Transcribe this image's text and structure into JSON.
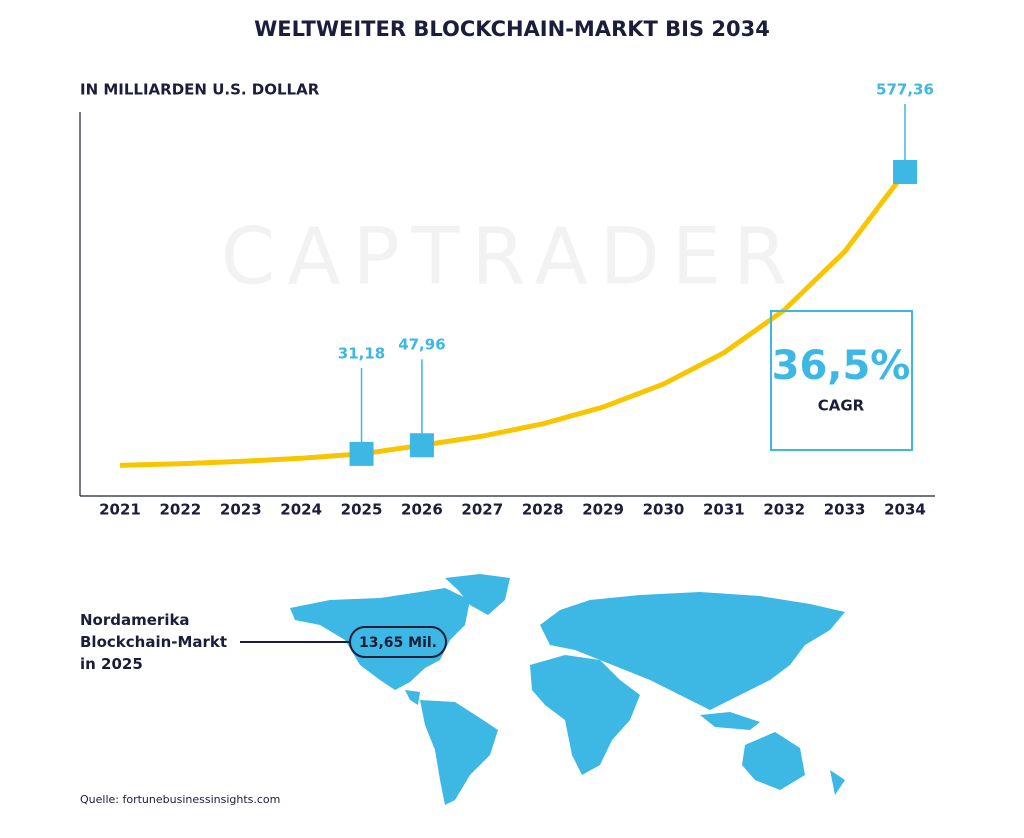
{
  "chart_data": {
    "type": "line",
    "title": "WELTWEITER BLOCKCHAIN-MARKT BIS 2034",
    "subtitle": "IN MILLIARDEN U.S. DOLLAR",
    "watermark": "CAPTRADER",
    "categories": [
      "2021",
      "2022",
      "2023",
      "2024",
      "2025",
      "2026",
      "2027",
      "2028",
      "2029",
      "2030",
      "2031",
      "2032",
      "2033",
      "2034"
    ],
    "values": [
      9.0,
      12.2,
      16.7,
      22.8,
      31.18,
      47.96,
      65.5,
      89.4,
      122,
      166.5,
      227,
      310,
      423,
      577.36
    ],
    "value_labels": [
      null,
      null,
      null,
      null,
      "31,18",
      "47,96",
      null,
      null,
      null,
      null,
      null,
      null,
      null,
      "577,36"
    ],
    "color": "#f7c600",
    "marker_color": "#3db7e4",
    "ylim": [
      0,
      620
    ],
    "cagr": {
      "value": "36,5%",
      "label": "CAGR"
    }
  },
  "map": {
    "label": [
      "Nordamerika",
      "Blockchain-Markt",
      "in 2025"
    ],
    "callout": "13,65 Mil."
  },
  "source": "Quelle: fortunebusinessinsights.com"
}
